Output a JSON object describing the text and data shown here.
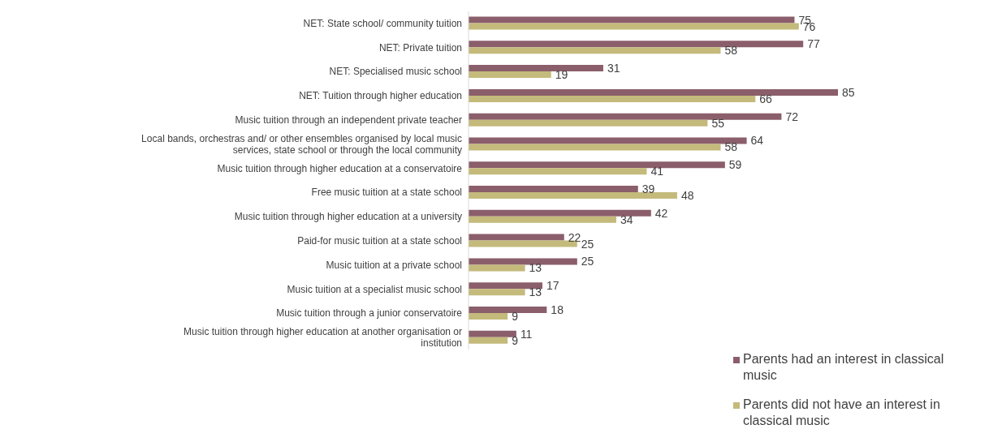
{
  "chart_data": {
    "type": "bar",
    "orientation": "horizontal",
    "data_labels": true,
    "legend": "bottom right",
    "categories": [
      "NET: State school/ community tuition",
      "NET: Private tuition",
      "NET: Specialised music school",
      "NET: Tuition through higher education",
      "Music tuition through an independent private teacher",
      "Local bands, orchestras and/ or other ensembles organised by local music services, state school or through the local community",
      "Music tuition through higher education at a conservatoire",
      "Free music tuition at a state school",
      "Music tuition through higher education at a university",
      "Paid-for music tuition at a state school",
      "Music tuition at a private school",
      "Music tuition at a specialist music school",
      "Music tuition through a junior conservatoire",
      "Music tuition through higher education at another organisation or institution"
    ],
    "series": [
      {
        "name": "Parents had an interest in classical music",
        "color": "#8b5e6b",
        "values": [
          75,
          77,
          31,
          85,
          72,
          64,
          59,
          39,
          42,
          22,
          25,
          17,
          18,
          11
        ]
      },
      {
        "name": "Parents did not have an interest in classical music",
        "color": "#c4ba7b",
        "values": [
          76,
          58,
          19,
          66,
          55,
          58,
          41,
          48,
          34,
          25,
          13,
          13,
          9,
          9
        ]
      }
    ]
  }
}
